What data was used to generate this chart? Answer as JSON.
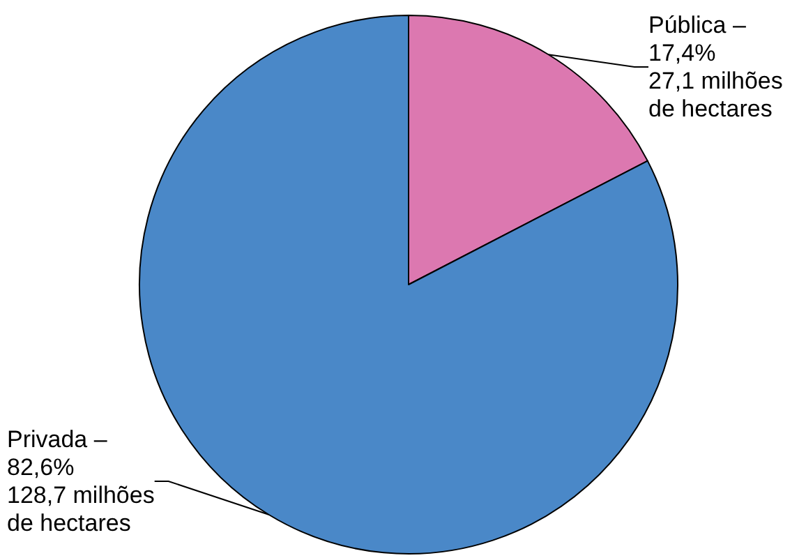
{
  "chart_data": {
    "type": "pie",
    "categories": [
      "Pública –",
      "Privada –"
    ],
    "values": [
      17.4,
      82.6
    ],
    "colors": [
      "#dc78b0",
      "#4a88c8"
    ],
    "value_labels": [
      "17,4%\n27,1 milhões\nde hectares",
      "82,6%\n128,7 milhões\nde hectares"
    ],
    "legend": false
  }
}
